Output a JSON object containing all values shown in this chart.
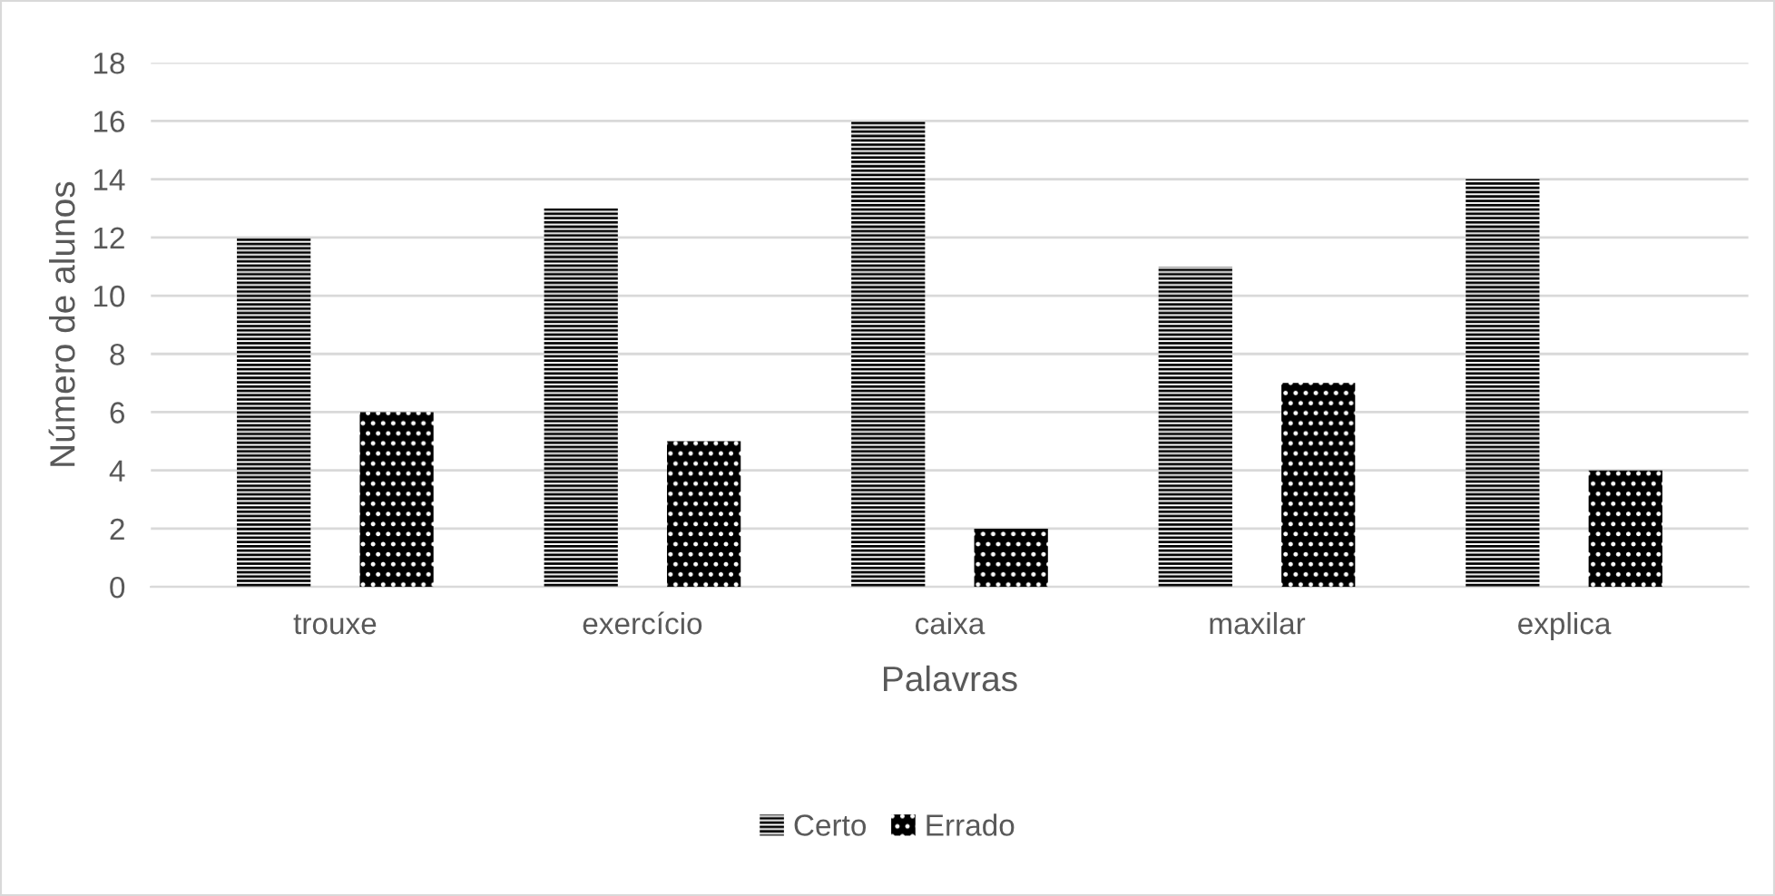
{
  "chart_data": {
    "type": "bar",
    "xlabel": "Palavras",
    "ylabel": "Número de alunos",
    "categories": [
      "trouxe",
      "exercício",
      "caixa",
      "maxilar",
      "explica"
    ],
    "series": [
      {
        "name": "Certo",
        "color": "#000000",
        "values": [
          12,
          13,
          16,
          11,
          14
        ]
      },
      {
        "name": "Errado",
        "color": "#000000",
        "values": [
          6,
          5,
          2,
          7,
          4
        ]
      }
    ],
    "ylim": [
      0,
      18
    ],
    "yticks": [
      0,
      2,
      4,
      6,
      8,
      10,
      12,
      14,
      16,
      18
    ],
    "grid": "y",
    "legend": "bottom"
  }
}
